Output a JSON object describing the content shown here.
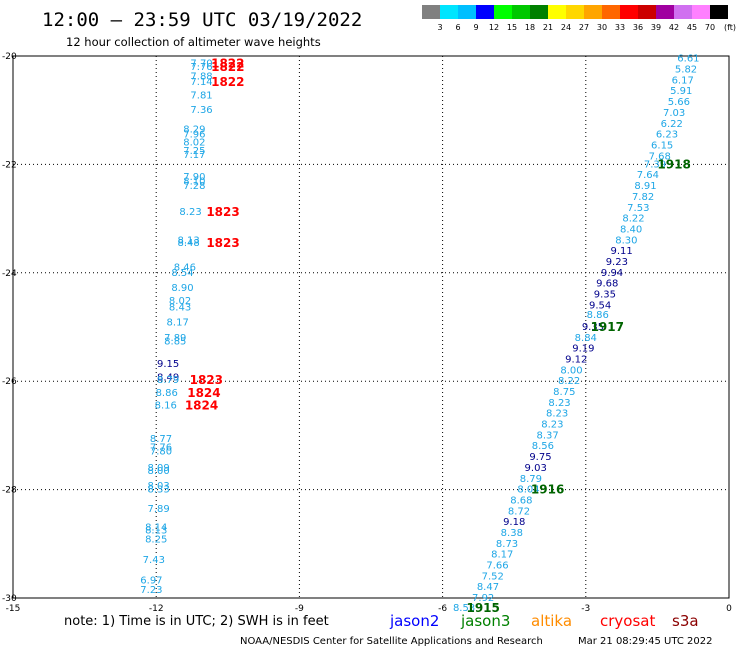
{
  "header": {
    "title": "12:00 – 23:59 UTC 03/19/2022",
    "subtitle": "12 hour collection of altimeter wave heights"
  },
  "scale": {
    "labels": [
      "3",
      "6",
      "9",
      "12",
      "15",
      "18",
      "21",
      "24",
      "27",
      "30",
      "33",
      "36",
      "39",
      "42",
      "45",
      "70"
    ],
    "unit": "(ft)",
    "colors": [
      "#808080",
      "#00e5ff",
      "#00bfff",
      "#0000ff",
      "#00ff00",
      "#00c800",
      "#008000",
      "#ffff00",
      "#ffd700",
      "#ffa500",
      "#ff6600",
      "#ff0000",
      "#cc0000",
      "#a000a0",
      "#d070f0",
      "#ff80ff",
      "#000000"
    ]
  },
  "colors": {
    "light": "#1ea6e6",
    "dark": "#00008b",
    "red": "#ff0000",
    "green": "#006400"
  },
  "footer": {
    "note": "note:  1) Time is in UTC;  2) SWH is in feet",
    "satellites": [
      {
        "name": "jason2",
        "color": "#0000ff"
      },
      {
        "name": "jason3",
        "color": "#008000"
      },
      {
        "name": "altika",
        "color": "#ff8c00"
      },
      {
        "name": "cryosat",
        "color": "#ff0000"
      },
      {
        "name": "s3a",
        "color": "#8b0000"
      }
    ],
    "credit": "NOAA/NESDIS Center for Satellite Applications and Research",
    "timestamp": "Mar 21 08:29:45 UTC 2022"
  },
  "chart_data": {
    "type": "scatter",
    "title": "12:00 – 23:59 UTC 03/19/2022",
    "xlabel": "",
    "ylabel": "",
    "xlim": [
      -15,
      0
    ],
    "ylim": [
      -30,
      -20
    ],
    "x_ticks": [
      "-15",
      "-12",
      "-9",
      "-6",
      "-3",
      "0"
    ],
    "y_ticks": [
      "-20",
      "-22",
      "-24",
      "-26",
      "-28",
      "-30"
    ],
    "grid": true,
    "swh_labels": [
      {
        "x": -11.05,
        "y": -20.14,
        "label": "7.70",
        "c": "light"
      },
      {
        "x": -11.05,
        "y": -20.2,
        "label": "7.76",
        "c": "light"
      },
      {
        "x": -11.05,
        "y": -20.38,
        "label": "7.88",
        "c": "light"
      },
      {
        "x": -11.05,
        "y": -20.48,
        "label": "7.14",
        "c": "light"
      },
      {
        "x": -11.05,
        "y": -20.73,
        "label": "7.81",
        "c": "light"
      },
      {
        "x": -11.05,
        "y": -21.0,
        "label": "7.36",
        "c": "light"
      },
      {
        "x": -11.2,
        "y": -21.36,
        "label": "8.29",
        "c": "light"
      },
      {
        "x": -11.2,
        "y": -21.45,
        "label": "7.96",
        "c": "light"
      },
      {
        "x": -11.2,
        "y": -21.6,
        "label": "8.02",
        "c": "light"
      },
      {
        "x": -11.2,
        "y": -21.75,
        "label": "7.25",
        "c": "light"
      },
      {
        "x": -11.2,
        "y": -21.83,
        "label": "7.17",
        "c": "light"
      },
      {
        "x": -11.2,
        "y": -22.23,
        "label": "7.90",
        "c": "light"
      },
      {
        "x": -11.2,
        "y": -22.32,
        "label": "8.10",
        "c": "light"
      },
      {
        "x": -11.2,
        "y": -22.4,
        "label": "7.28",
        "c": "light"
      },
      {
        "x": -11.28,
        "y": -22.88,
        "label": "8.23",
        "c": "light"
      },
      {
        "x": -11.32,
        "y": -23.4,
        "label": "8.13",
        "c": "light"
      },
      {
        "x": -11.32,
        "y": -23.45,
        "label": "8.48",
        "c": "light"
      },
      {
        "x": -11.4,
        "y": -23.9,
        "label": "8.46",
        "c": "light"
      },
      {
        "x": -11.45,
        "y": -24.0,
        "label": "8.54",
        "c": "light"
      },
      {
        "x": -11.45,
        "y": -24.28,
        "label": "8.90",
        "c": "light"
      },
      {
        "x": -11.5,
        "y": -24.52,
        "label": "8.02",
        "c": "light"
      },
      {
        "x": -11.5,
        "y": -24.64,
        "label": "8.43",
        "c": "light"
      },
      {
        "x": -11.55,
        "y": -24.92,
        "label": "8.17",
        "c": "light"
      },
      {
        "x": -11.6,
        "y": -25.2,
        "label": "7.89",
        "c": "light"
      },
      {
        "x": -11.6,
        "y": -25.27,
        "label": "8.85",
        "c": "light"
      },
      {
        "x": -11.75,
        "y": -25.68,
        "label": "9.15",
        "c": "dark"
      },
      {
        "x": -11.75,
        "y": -25.93,
        "label": "8.49",
        "c": "dark"
      },
      {
        "x": -11.75,
        "y": -25.98,
        "label": "8.79",
        "c": "light"
      },
      {
        "x": -11.78,
        "y": -26.22,
        "label": "8.86",
        "c": "light"
      },
      {
        "x": -11.8,
        "y": -26.45,
        "label": "8.16",
        "c": "light"
      },
      {
        "x": -11.9,
        "y": -27.07,
        "label": "8.77",
        "c": "light"
      },
      {
        "x": -11.9,
        "y": -27.22,
        "label": "7.76",
        "c": "light"
      },
      {
        "x": -11.9,
        "y": -27.3,
        "label": "7.80",
        "c": "light"
      },
      {
        "x": -11.95,
        "y": -27.6,
        "label": "8.09",
        "c": "light"
      },
      {
        "x": -11.95,
        "y": -27.66,
        "label": "8.00",
        "c": "light"
      },
      {
        "x": -11.95,
        "y": -27.93,
        "label": "8.03",
        "c": "light"
      },
      {
        "x": -11.95,
        "y": -28.0,
        "label": "8.33",
        "c": "light"
      },
      {
        "x": -11.95,
        "y": -28.36,
        "label": "7.89",
        "c": "light"
      },
      {
        "x": -12.0,
        "y": -28.7,
        "label": "8.14",
        "c": "light"
      },
      {
        "x": -12.0,
        "y": -28.75,
        "label": "8.13",
        "c": "light"
      },
      {
        "x": -12.0,
        "y": -28.92,
        "label": "8.25",
        "c": "light"
      },
      {
        "x": -12.05,
        "y": -29.3,
        "label": "7.43",
        "c": "light"
      },
      {
        "x": -12.1,
        "y": -29.68,
        "label": "6.97",
        "c": "light"
      },
      {
        "x": -12.1,
        "y": -29.85,
        "label": "7.23",
        "c": "light"
      },
      {
        "x": -0.85,
        "y": -20.05,
        "label": "6.61",
        "c": "light"
      },
      {
        "x": -0.9,
        "y": -20.25,
        "label": "5.82",
        "c": "light"
      },
      {
        "x": -0.97,
        "y": -20.45,
        "label": "6.17",
        "c": "light"
      },
      {
        "x": -1.0,
        "y": -20.65,
        "label": "5.91",
        "c": "light"
      },
      {
        "x": -1.05,
        "y": -20.85,
        "label": "5.66",
        "c": "light"
      },
      {
        "x": -1.15,
        "y": -21.05,
        "label": "7.03",
        "c": "light"
      },
      {
        "x": -1.2,
        "y": -21.25,
        "label": "6.22",
        "c": "light"
      },
      {
        "x": -1.3,
        "y": -21.45,
        "label": "6.23",
        "c": "light"
      },
      {
        "x": -1.4,
        "y": -21.65,
        "label": "6.15",
        "c": "light"
      },
      {
        "x": -1.45,
        "y": -21.85,
        "label": "7.68",
        "c": "light"
      },
      {
        "x": -1.55,
        "y": -22.0,
        "label": "7.39",
        "c": "light"
      },
      {
        "x": -1.7,
        "y": -22.2,
        "label": "7.64",
        "c": "light"
      },
      {
        "x": -1.75,
        "y": -22.4,
        "label": "8.91",
        "c": "light"
      },
      {
        "x": -1.8,
        "y": -22.6,
        "label": "7.82",
        "c": "light"
      },
      {
        "x": -1.9,
        "y": -22.8,
        "label": "7.53",
        "c": "light"
      },
      {
        "x": -2.0,
        "y": -23.0,
        "label": "8.22",
        "c": "light"
      },
      {
        "x": -2.05,
        "y": -23.2,
        "label": "8.40",
        "c": "light"
      },
      {
        "x": -2.15,
        "y": -23.4,
        "label": "8.30",
        "c": "light"
      },
      {
        "x": -2.25,
        "y": -23.6,
        "label": "9.11",
        "c": "dark"
      },
      {
        "x": -2.35,
        "y": -23.8,
        "label": "9.23",
        "c": "dark"
      },
      {
        "x": -2.45,
        "y": -24.0,
        "label": "9.94",
        "c": "dark"
      },
      {
        "x": -2.55,
        "y": -24.2,
        "label": "9.68",
        "c": "dark"
      },
      {
        "x": -2.6,
        "y": -24.4,
        "label": "9.35",
        "c": "dark"
      },
      {
        "x": -2.7,
        "y": -24.6,
        "label": "9.54",
        "c": "dark"
      },
      {
        "x": -2.75,
        "y": -24.78,
        "label": "8.86",
        "c": "light"
      },
      {
        "x": -2.85,
        "y": -25.0,
        "label": "9.35",
        "c": "dark"
      },
      {
        "x": -3.0,
        "y": -25.2,
        "label": "8.84",
        "c": "light"
      },
      {
        "x": -3.05,
        "y": -25.4,
        "label": "9.19",
        "c": "dark"
      },
      {
        "x": -3.2,
        "y": -25.6,
        "label": "9.12",
        "c": "dark"
      },
      {
        "x": -3.3,
        "y": -25.8,
        "label": "8.00",
        "c": "light"
      },
      {
        "x": -3.35,
        "y": -26.0,
        "label": "8.22",
        "c": "light"
      },
      {
        "x": -3.45,
        "y": -26.2,
        "label": "8.75",
        "c": "light"
      },
      {
        "x": -3.55,
        "y": -26.4,
        "label": "8.23",
        "c": "light"
      },
      {
        "x": -3.6,
        "y": -26.6,
        "label": "8.23",
        "c": "light"
      },
      {
        "x": -3.7,
        "y": -26.8,
        "label": "8.23",
        "c": "light"
      },
      {
        "x": -3.8,
        "y": -27.0,
        "label": "8.37",
        "c": "light"
      },
      {
        "x": -3.9,
        "y": -27.2,
        "label": "8.56",
        "c": "light"
      },
      {
        "x": -3.95,
        "y": -27.4,
        "label": "9.75",
        "c": "dark"
      },
      {
        "x": -4.05,
        "y": -27.6,
        "label": "9.03",
        "c": "dark"
      },
      {
        "x": -4.15,
        "y": -27.8,
        "label": "8.79",
        "c": "light"
      },
      {
        "x": -4.2,
        "y": -28.0,
        "label": "8.04",
        "c": "light"
      },
      {
        "x": -4.35,
        "y": -28.2,
        "label": "8.68",
        "c": "light"
      },
      {
        "x": -4.4,
        "y": -28.4,
        "label": "8.72",
        "c": "light"
      },
      {
        "x": -4.5,
        "y": -28.6,
        "label": "9.18",
        "c": "dark"
      },
      {
        "x": -4.55,
        "y": -28.8,
        "label": "8.38",
        "c": "light"
      },
      {
        "x": -4.65,
        "y": -29.0,
        "label": "8.73",
        "c": "light"
      },
      {
        "x": -4.75,
        "y": -29.2,
        "label": "8.17",
        "c": "light"
      },
      {
        "x": -4.85,
        "y": -29.4,
        "label": "7.66",
        "c": "light"
      },
      {
        "x": -4.95,
        "y": -29.6,
        "label": "7.52",
        "c": "light"
      },
      {
        "x": -5.05,
        "y": -29.8,
        "label": "8.47",
        "c": "light"
      },
      {
        "x": -5.15,
        "y": -30.0,
        "label": "7.92",
        "c": "light"
      },
      {
        "x": -5.55,
        "y": -30.18,
        "label": "8.53",
        "c": "light"
      }
    ],
    "pass_labels": [
      {
        "x": -10.5,
        "y": -20.14,
        "label": "1822",
        "c": "red"
      },
      {
        "x": -10.5,
        "y": -20.2,
        "label": "1822",
        "c": "red"
      },
      {
        "x": -10.5,
        "y": -20.48,
        "label": "1822",
        "c": "red"
      },
      {
        "x": -10.6,
        "y": -22.88,
        "label": "1823",
        "c": "red"
      },
      {
        "x": -10.6,
        "y": -23.45,
        "label": "1823",
        "c": "red"
      },
      {
        "x": -10.95,
        "y": -25.98,
        "label": "1823",
        "c": "red"
      },
      {
        "x": -11.0,
        "y": -26.22,
        "label": "1824",
        "c": "red"
      },
      {
        "x": -11.05,
        "y": -26.45,
        "label": "1824",
        "c": "red"
      },
      {
        "x": -1.15,
        "y": -22.0,
        "label": "1918",
        "c": "green"
      },
      {
        "x": -2.55,
        "y": -25.0,
        "label": "1917",
        "c": "green"
      },
      {
        "x": -3.8,
        "y": -28.0,
        "label": "1916",
        "c": "green"
      },
      {
        "x": -5.15,
        "y": -30.18,
        "label": "1915",
        "c": "green"
      }
    ]
  }
}
